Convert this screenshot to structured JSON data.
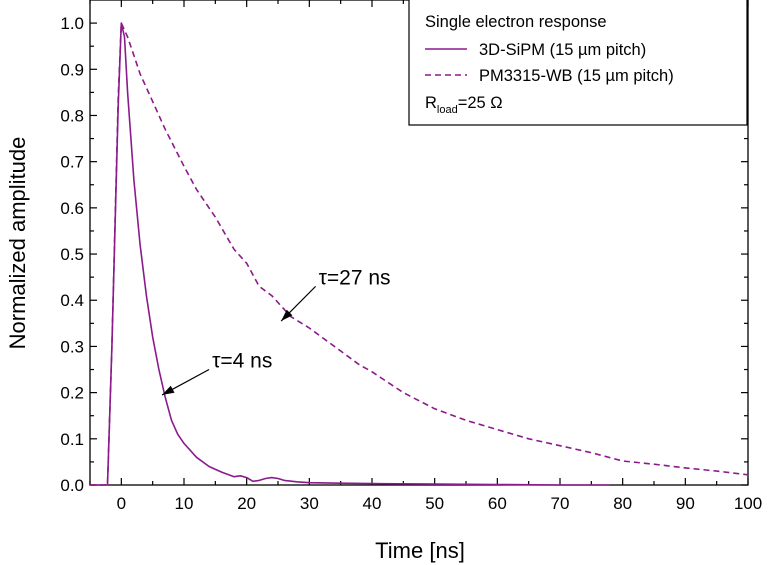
{
  "chart_data": {
    "type": "line",
    "title": "",
    "xlabel": "Time [ns]",
    "ylabel": "Normalized amplitude",
    "xlim": [
      -5,
      100
    ],
    "ylim": [
      0,
      1.05
    ],
    "x_ticks": [
      0,
      10,
      20,
      30,
      40,
      50,
      60,
      70,
      80,
      90,
      100
    ],
    "y_ticks": [
      0.0,
      0.1,
      0.2,
      0.3,
      0.4,
      0.5,
      0.6,
      0.7,
      0.8,
      0.9,
      1.0
    ],
    "x_tick_labels": [
      "0",
      "10",
      "20",
      "30",
      "40",
      "50",
      "60",
      "70",
      "80",
      "90",
      "100"
    ],
    "y_tick_labels": [
      "0.0",
      "0.1",
      "0.2",
      "0.3",
      "0.4",
      "0.5",
      "0.6",
      "0.7",
      "0.8",
      "0.9",
      "1.0"
    ],
    "grid": false,
    "legend": {
      "placement": "top-right",
      "title": "Single electron response",
      "note_main": "R",
      "note_sub": "load",
      "note_rest": "=25 Ω"
    },
    "series": [
      {
        "name": "3D-SiPM (15 µm pitch)",
        "style": "solid",
        "color": "#8b1a8b",
        "x": [
          -5,
          -2.2,
          -1.5,
          -0.5,
          0,
          0.5,
          1,
          2,
          3,
          4,
          5,
          6,
          7,
          8,
          9,
          10,
          12,
          14,
          16,
          18,
          19,
          20,
          21,
          22,
          23,
          24,
          25,
          26,
          28,
          30,
          35,
          40,
          50,
          60,
          70,
          78
        ],
        "y": [
          0,
          0,
          0.3,
          0.82,
          1.0,
          0.97,
          0.85,
          0.66,
          0.52,
          0.41,
          0.32,
          0.25,
          0.19,
          0.14,
          0.11,
          0.09,
          0.06,
          0.04,
          0.028,
          0.018,
          0.02,
          0.016,
          0.008,
          0.01,
          0.014,
          0.016,
          0.014,
          0.01,
          0.007,
          0.005,
          0.004,
          0.003,
          0.002,
          0.001,
          0.0,
          0.0
        ]
      },
      {
        "name": "PM3315-WB (15 µm pitch)",
        "style": "dashed",
        "color": "#8b1a8b",
        "x": [
          -5,
          -2.2,
          -1.5,
          -0.5,
          0,
          1,
          2,
          3,
          5,
          7,
          10,
          12,
          15,
          18,
          20,
          22,
          23,
          24,
          25,
          27,
          30,
          33,
          35,
          38,
          40,
          45,
          50,
          55,
          60,
          65,
          70,
          75,
          80,
          85,
          90,
          95,
          100
        ],
        "y": [
          0,
          0,
          0.3,
          0.84,
          1.0,
          0.97,
          0.93,
          0.89,
          0.83,
          0.77,
          0.69,
          0.64,
          0.58,
          0.51,
          0.48,
          0.43,
          0.42,
          0.41,
          0.395,
          0.365,
          0.34,
          0.31,
          0.29,
          0.26,
          0.245,
          0.2,
          0.165,
          0.14,
          0.12,
          0.1,
          0.085,
          0.07,
          0.052,
          0.045,
          0.037,
          0.03,
          0.022
        ]
      }
    ],
    "annotations": [
      {
        "text": "τ=4 ns",
        "from": [
          14,
          0.25
        ],
        "to": [
          6.5,
          0.195
        ]
      },
      {
        "text": "τ=27 ns",
        "from": [
          31,
          0.43
        ],
        "to": [
          25.5,
          0.355
        ]
      }
    ]
  }
}
